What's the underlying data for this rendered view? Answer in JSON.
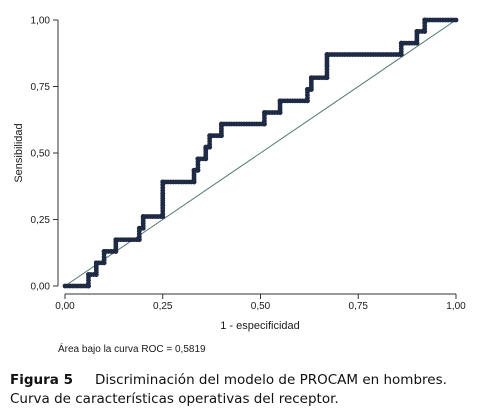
{
  "chart_data": {
    "type": "line",
    "xlabel": "1 - especificidad",
    "ylabel": "Sensibilidad",
    "xlim": [
      0,
      1
    ],
    "ylim": [
      0,
      1
    ],
    "xticks": [
      "0,00",
      "0,25",
      "0,50",
      "0,75",
      "1,00"
    ],
    "yticks": [
      "0,00",
      "0,25",
      "0,50",
      "0,75",
      "1,00"
    ],
    "grid": false,
    "annotation": "Área bajo la curva ROC = 0,5819",
    "colors": {
      "curve": "#1f2a44",
      "reference": "#4f7a6a"
    },
    "reference_line": {
      "x": [
        0,
        1
      ],
      "y": [
        0,
        1
      ]
    },
    "series": [
      {
        "points": [
          [
            0.0,
            0.0
          ],
          [
            0.06,
            0.0
          ],
          [
            0.06,
            0.043
          ],
          [
            0.08,
            0.043
          ],
          [
            0.08,
            0.087
          ],
          [
            0.1,
            0.087
          ],
          [
            0.1,
            0.13
          ],
          [
            0.13,
            0.13
          ],
          [
            0.13,
            0.174
          ],
          [
            0.19,
            0.174
          ],
          [
            0.19,
            0.217
          ],
          [
            0.2,
            0.217
          ],
          [
            0.2,
            0.261
          ],
          [
            0.25,
            0.261
          ],
          [
            0.25,
            0.304
          ],
          [
            0.25,
            0.348
          ],
          [
            0.25,
            0.391
          ],
          [
            0.33,
            0.391
          ],
          [
            0.33,
            0.435
          ],
          [
            0.34,
            0.435
          ],
          [
            0.34,
            0.478
          ],
          [
            0.36,
            0.478
          ],
          [
            0.36,
            0.522
          ],
          [
            0.37,
            0.522
          ],
          [
            0.37,
            0.565
          ],
          [
            0.4,
            0.565
          ],
          [
            0.4,
            0.609
          ],
          [
            0.51,
            0.609
          ],
          [
            0.51,
            0.652
          ],
          [
            0.55,
            0.652
          ],
          [
            0.55,
            0.696
          ],
          [
            0.62,
            0.696
          ],
          [
            0.62,
            0.739
          ],
          [
            0.63,
            0.739
          ],
          [
            0.63,
            0.783
          ],
          [
            0.67,
            0.783
          ],
          [
            0.67,
            0.826
          ],
          [
            0.67,
            0.87
          ],
          [
            0.86,
            0.87
          ],
          [
            0.86,
            0.913
          ],
          [
            0.9,
            0.913
          ],
          [
            0.9,
            0.957
          ],
          [
            0.92,
            0.957
          ],
          [
            0.92,
            1.0
          ],
          [
            1.0,
            1.0
          ]
        ]
      }
    ]
  },
  "caption": {
    "label": "Figura 5",
    "text": "Discriminación del modelo de PROCAM en hombres. Curva de características operativas del receptor."
  }
}
